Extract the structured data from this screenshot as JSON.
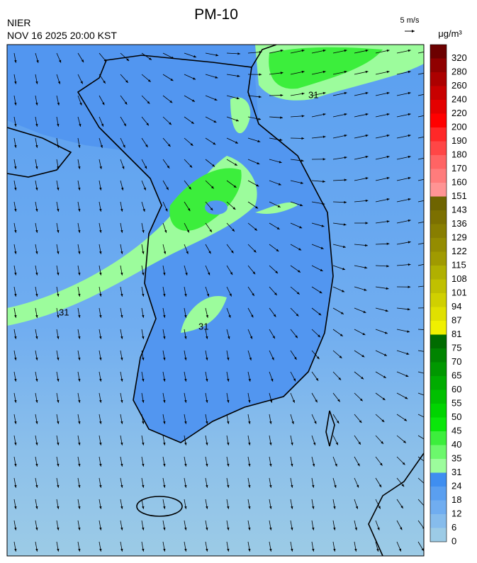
{
  "header": {
    "title": "PM-10",
    "agency": "NIER",
    "datetime": "NOV 16 2025 20:00 KST",
    "wind_scale": "5 m/s"
  },
  "legend": {
    "unit": "μg/m³",
    "ticks": [
      0,
      6,
      12,
      18,
      24,
      31,
      35,
      40,
      45,
      50,
      55,
      60,
      65,
      70,
      75,
      81,
      87,
      94,
      101,
      108,
      115,
      122,
      129,
      136,
      143,
      151,
      160,
      170,
      180,
      190,
      200,
      220,
      240,
      260,
      280,
      320
    ],
    "colors": [
      "#9ccbe6",
      "#86bcec",
      "#70adf0",
      "#5a9ff0",
      "#3f8ef0",
      "#9cfc9c",
      "#6cf86c",
      "#3cee3c",
      "#0ae60a",
      "#00d400",
      "#00c000",
      "#00ac00",
      "#009800",
      "#008400",
      "#006c00",
      "#f0f000",
      "#e0e000",
      "#d0d000",
      "#c0c000",
      "#b0b000",
      "#a09a00",
      "#948c00",
      "#887e00",
      "#7c7000",
      "#6e6400",
      "#ff9494",
      "#ff7c7c",
      "#ff6464",
      "#ff4646",
      "#ff2828",
      "#ff0000",
      "#e40000",
      "#c80000",
      "#ac0000",
      "#900000",
      "#6c0000"
    ]
  },
  "map": {
    "contour_label": "31"
  }
}
